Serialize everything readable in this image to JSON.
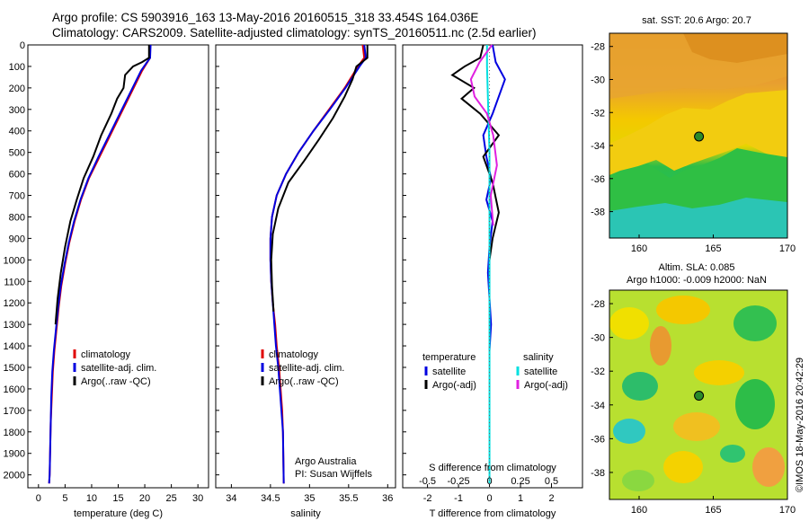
{
  "header": {
    "line1": "Argo profile: CS 5903916_163 13-May-2016 20160515_318 33.454S 164.036E",
    "line2": "Climatology: CARS2009. Satellite-adjusted climatology: synTS_20160511.nc (2.5d earlier)"
  },
  "colors": {
    "climatology": "#e00000",
    "satellite": "#0000e0",
    "argo": "#000000",
    "satellite_salinity": "#00e0e0",
    "argo_salinity": "#e020e0"
  },
  "chart_data": [
    {
      "type": "line",
      "xlabel": "temperature (deg C)",
      "xticks": [
        "0",
        "5",
        "10",
        "15",
        "20",
        "25",
        "30"
      ],
      "yticks": [
        "0",
        "100",
        "200",
        "300",
        "400",
        "500",
        "600",
        "700",
        "800",
        "900",
        "1000",
        "1100",
        "1200",
        "1300",
        "1400",
        "1500",
        "1600",
        "1700",
        "1800",
        "1900",
        "2000"
      ],
      "xlim": [
        -2,
        32
      ],
      "ylim": [
        2060,
        0
      ],
      "legend": [
        "climatology",
        "satellite-adj. clim.",
        "Argo(..raw -QC)"
      ],
      "legend_position": "bottom-center",
      "series": [
        {
          "name": "climatology",
          "color": "#e00000",
          "x": [
            21.0,
            21.0,
            19.5,
            17.5,
            15.5,
            13.5,
            11.5,
            9.5,
            8.0,
            6.8,
            5.8,
            5.0,
            4.3,
            3.8,
            3.4,
            3.0,
            2.7,
            2.5,
            2.3,
            2.2,
            2.1,
            2.0
          ],
          "y": [
            0,
            60,
            120,
            220,
            320,
            420,
            520,
            620,
            720,
            820,
            920,
            1020,
            1120,
            1220,
            1320,
            1420,
            1520,
            1640,
            1760,
            1880,
            2000,
            2040
          ]
        },
        {
          "name": "satellite-adj. clim.",
          "color": "#0000e0",
          "x": [
            21.1,
            21.0,
            19.3,
            17.3,
            15.3,
            13.3,
            11.3,
            9.4,
            7.9,
            6.7,
            5.7,
            4.9,
            4.2,
            3.7,
            3.3,
            2.9,
            2.6,
            2.4,
            2.3,
            2.2,
            2.1,
            2.0
          ],
          "y": [
            0,
            60,
            120,
            220,
            320,
            420,
            520,
            620,
            720,
            820,
            920,
            1020,
            1120,
            1220,
            1320,
            1420,
            1520,
            1640,
            1760,
            1880,
            2000,
            2040
          ]
        },
        {
          "name": "Argo(..raw -QC)",
          "color": "#000000",
          "x": [
            20.8,
            20.8,
            19.5,
            17.8,
            16.3,
            16.0,
            14.8,
            13.7,
            11.8,
            10.3,
            8.5,
            7.2,
            6.0,
            5.0,
            4.2,
            3.6,
            3.2
          ],
          "y": [
            0,
            60,
            80,
            100,
            140,
            200,
            250,
            320,
            420,
            520,
            620,
            720,
            820,
            940,
            1060,
            1180,
            1300
          ]
        }
      ]
    },
    {
      "type": "line",
      "xlabel": "salinity",
      "xticks": [
        "34",
        "34.5",
        "35",
        "35.5",
        "36"
      ],
      "ylim": [
        2060,
        0
      ],
      "xlim": [
        33.8,
        36.1
      ],
      "legend": [
        "climatology",
        "satellite-adj. clim.",
        "Argo(..raw -QC)"
      ],
      "legend_position": "bottom-center",
      "series": [
        {
          "name": "climatology",
          "color": "#e00000",
          "x": [
            35.68,
            35.7,
            35.62,
            35.45,
            35.25,
            35.05,
            34.86,
            34.7,
            34.58,
            34.52,
            34.5,
            34.5,
            34.51,
            34.53,
            34.56,
            34.58,
            34.61,
            34.63,
            34.65,
            34.66,
            34.67
          ],
          "y": [
            0,
            60,
            100,
            200,
            300,
            400,
            500,
            600,
            700,
            800,
            900,
            1000,
            1100,
            1200,
            1300,
            1400,
            1500,
            1600,
            1700,
            1800,
            2040
          ]
        },
        {
          "name": "satellite-adj. clim.",
          "color": "#0000e0",
          "x": [
            35.7,
            35.72,
            35.64,
            35.46,
            35.26,
            35.05,
            34.86,
            34.7,
            34.58,
            34.52,
            34.5,
            34.5,
            34.51,
            34.53,
            34.55,
            34.57,
            34.6,
            34.62,
            34.64,
            34.66,
            34.67
          ],
          "y": [
            0,
            60,
            100,
            200,
            300,
            400,
            500,
            600,
            700,
            800,
            900,
            1000,
            1100,
            1200,
            1300,
            1400,
            1500,
            1600,
            1700,
            1800,
            2040
          ]
        },
        {
          "name": "Argo(..raw -QC)",
          "color": "#000000",
          "x": [
            35.74,
            35.74,
            35.6,
            35.55,
            35.45,
            35.3,
            35.12,
            34.93,
            34.73,
            34.6,
            34.53,
            34.51,
            34.52,
            34.54
          ],
          "y": [
            0,
            60,
            100,
            160,
            240,
            340,
            440,
            540,
            640,
            760,
            880,
            1000,
            1120,
            1240
          ]
        }
      ]
    },
    {
      "type": "line",
      "xlabel": "T difference from climatology",
      "title_bottom": "S difference from climatology",
      "xticks": [
        "-2",
        "-1",
        "0",
        "1",
        "2"
      ],
      "xticks_top": [
        "-0.5",
        "-0.25",
        "0",
        "0.25",
        "0.5"
      ],
      "xlim": [
        -2.8,
        3.0
      ],
      "ylim": [
        2060,
        0
      ],
      "legend_left_title": "temperature",
      "legend_right_title": "salinity",
      "legend_left": [
        "satellite",
        "Argo(-adj)"
      ],
      "legend_right": [
        "satellite",
        "Argo(-adj)"
      ],
      "series": [
        {
          "name": "temperature satellite",
          "color": "#0000e0",
          "x": [
            0.1,
            0.2,
            0.5,
            0.3,
            0.1,
            -0.2,
            -0.1,
            0.05,
            -0.1,
            0.1,
            0.0,
            -0.05,
            0.0,
            0.05,
            0.0
          ],
          "y": [
            0,
            80,
            160,
            240,
            320,
            420,
            520,
            620,
            720,
            820,
            940,
            1060,
            1180,
            1300,
            1420
          ]
        },
        {
          "name": "temperature Argo(-adj)",
          "color": "#000000",
          "x": [
            -0.2,
            -0.3,
            -0.8,
            -1.2,
            -0.5,
            -0.9,
            -0.3,
            0.3,
            -0.2,
            0.1,
            0.3,
            0.1,
            0.0
          ],
          "y": [
            0,
            60,
            100,
            140,
            200,
            250,
            320,
            420,
            520,
            640,
            780,
            900,
            1000
          ]
        },
        {
          "name": "salinity satellite",
          "color": "#00e0e0",
          "x": [
            -0.02,
            -0.02,
            -0.01,
            0.0,
            0.0,
            0.0,
            0.0,
            0.0,
            0.0,
            0.0
          ],
          "y": [
            0,
            100,
            300,
            500,
            800,
            1100,
            1400,
            1700,
            1900,
            2040
          ]
        },
        {
          "name": "salinity Argo(-adj)",
          "color": "#e020e0",
          "x": [
            0.02,
            -0.08,
            -0.15,
            -0.12,
            -0.02,
            0.03,
            0.06,
            0.01,
            0.03
          ],
          "y": [
            0,
            80,
            160,
            240,
            320,
            420,
            560,
            700,
            840
          ]
        }
      ],
      "annotation": [
        "Argo Australia",
        "PI: Susan Wijffels"
      ]
    }
  ],
  "maps": {
    "sst": {
      "title": "sat. SST: 20.6  Argo: 20.7",
      "xticks": [
        "160",
        "165",
        "170"
      ],
      "yticks": [
        "-28",
        "-30",
        "-32",
        "-34",
        "-36",
        "-38"
      ],
      "marker": {
        "lon": 164.036,
        "lat": -33.454
      }
    },
    "sla": {
      "title1": "Altim. SLA: 0.085",
      "title2": "Argo h1000: -0.009 h2000: NaN",
      "xticks": [
        "160",
        "165",
        "170"
      ],
      "yticks": [
        "-28",
        "-30",
        "-32",
        "-34",
        "-36",
        "-38"
      ],
      "marker": {
        "lon": 164.036,
        "lat": -33.454
      }
    }
  },
  "credit": "©IMOS 18-May-2016 20:42:29"
}
